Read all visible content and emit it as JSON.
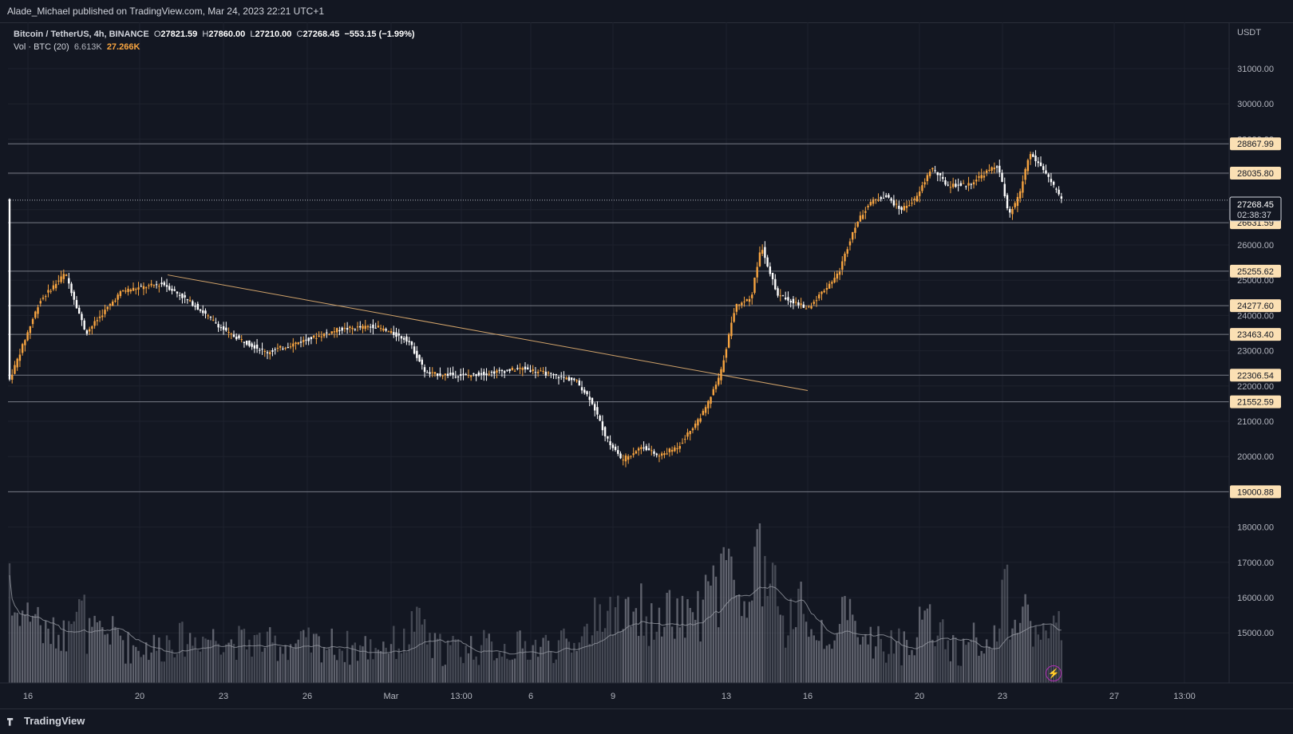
{
  "header": {
    "published": "Alade_Michael published on TradingView.com, Mar 24, 2023 22:21 UTC+1"
  },
  "legend": {
    "symbol": "Bitcoin / TetherUS, 4h, BINANCE",
    "open_label": "O",
    "open": "27821.59",
    "high_label": "H",
    "high": "27860.00",
    "low_label": "L",
    "low": "27210.00",
    "close_label": "C",
    "close": "27268.45",
    "change": "−553.15 (−1.99%)",
    "vol_label": "Vol · BTC (20)",
    "vol_avg": "6.613K",
    "vol_value": "27.266K"
  },
  "price_axis": {
    "currency": "USDT",
    "tick_labels": [
      "31000.00",
      "30000.00",
      "29000.00",
      "28000.00",
      "27000.00",
      "26000.00",
      "25000.00",
      "24000.00",
      "23000.00",
      "22000.00",
      "21000.00",
      "20000.00",
      "19000.00",
      "18000.00",
      "17000.00",
      "16000.00",
      "15000.00"
    ],
    "last_price": "27268.45",
    "countdown": "02:38:37"
  },
  "time_axis": {
    "labels": [
      "16",
      "20",
      "23",
      "26",
      "Mar",
      "13:00",
      "6",
      "9",
      "13",
      "16",
      "20",
      "23",
      "27",
      "13:00"
    ]
  },
  "horizontal_levels": [
    "28867.99",
    "28035.80",
    "26631.59",
    "25255.62",
    "24277.60",
    "23463.40",
    "22306.54",
    "21552.59",
    "19000.88"
  ],
  "footer": {
    "brand": "TradingView"
  },
  "colors": {
    "background": "#131722",
    "bull": "#f7a440",
    "bear": "#ffffff",
    "level_line": "#787b86",
    "trendline": "#d1a36a",
    "volume": "#787b86"
  },
  "icons": {
    "alert": "lightning-icon"
  },
  "chart_data": {
    "type": "candlestick",
    "title": "Bitcoin / TetherUS, 4h, BINANCE",
    "ylabel": "USDT",
    "ylim": [
      14400,
      31900
    ],
    "grid": true,
    "x_ticks": [
      "16",
      "20",
      "23",
      "26",
      "Mar",
      "13:00",
      "6",
      "9",
      "13",
      "16",
      "20",
      "23",
      "27",
      "13:00"
    ],
    "trendline": {
      "from_price": 25150,
      "to_price": 21870
    },
    "path_points": [
      [
        0,
        22100
      ],
      [
        12,
        24400
      ],
      [
        22,
        25200
      ],
      [
        30,
        23500
      ],
      [
        44,
        24700
      ],
      [
        60,
        24900
      ],
      [
        72,
        24300
      ],
      [
        85,
        23500
      ],
      [
        100,
        22950
      ],
      [
        115,
        23300
      ],
      [
        128,
        23600
      ],
      [
        142,
        23700
      ],
      [
        155,
        23300
      ],
      [
        162,
        22350
      ],
      [
        178,
        22300
      ],
      [
        200,
        22500
      ],
      [
        220,
        22150
      ],
      [
        226,
        21600
      ],
      [
        232,
        20500
      ],
      [
        238,
        19900
      ],
      [
        246,
        20300
      ],
      [
        252,
        20000
      ],
      [
        260,
        20300
      ],
      [
        270,
        21300
      ],
      [
        276,
        22300
      ],
      [
        282,
        24300
      ],
      [
        288,
        24500
      ],
      [
        292,
        26000
      ],
      [
        298,
        24600
      ],
      [
        304,
        24400
      ],
      [
        310,
        24200
      ],
      [
        316,
        24700
      ],
      [
        322,
        25200
      ],
      [
        328,
        26500
      ],
      [
        334,
        27200
      ],
      [
        340,
        27400
      ],
      [
        346,
        27000
      ],
      [
        352,
        27300
      ],
      [
        358,
        28200
      ],
      [
        364,
        27700
      ],
      [
        372,
        27700
      ],
      [
        380,
        28100
      ],
      [
        384,
        28250
      ],
      [
        388,
        26800
      ],
      [
        392,
        27400
      ],
      [
        396,
        28600
      ],
      [
        402,
        28100
      ],
      [
        408,
        27300
      ]
    ]
  }
}
